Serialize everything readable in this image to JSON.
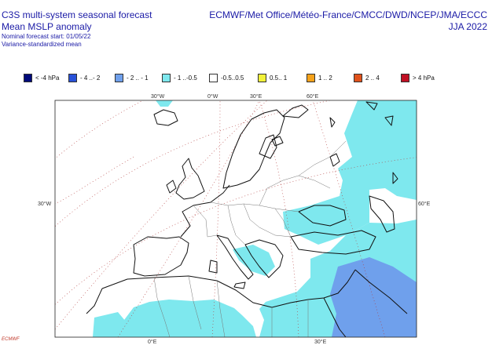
{
  "header": {
    "line1": "C3S multi-system seasonal forecast",
    "line2": "Mean MSLP anomaly",
    "line3": "Nominal forecast start: 01/05/22",
    "line4": "Variance-standardized mean",
    "centres": "ECMWF/Met Office/Météo-France/CMCC/DWD/NCEP/JMA/ECCC",
    "season": "JJA 2022"
  },
  "legend": [
    {
      "label": "< -4 hPa",
      "color": "#000a7a"
    },
    {
      "label": "- 4 ..- 2",
      "color": "#2851d8"
    },
    {
      "label": "- 2 .. - 1",
      "color": "#6fa0ec"
    },
    {
      "label": "- 1 ..-0.5",
      "color": "#7ee8ee"
    },
    {
      "label": "-0.5..0.5",
      "color": "#ffffff"
    },
    {
      "label": "0.5.. 1",
      "color": "#f2f23a"
    },
    {
      "label": "1 .. 2",
      "color": "#f5a21a"
    },
    {
      "label": "2 .. 4",
      "color": "#e0521c"
    },
    {
      "label": "> 4 hPa",
      "color": "#c01024"
    }
  ],
  "map": {
    "lon_labels_top": [
      "30°W",
      "0°W",
      "30°E",
      "60°E"
    ],
    "lon_labels_bottom": [
      "0°E",
      "30°E"
    ],
    "lat_label_left": "30°W",
    "lat_label_right": "60°E",
    "anomaly_colors": {
      "minus1": "#7ee8ee",
      "minus2": "#6fa0ec"
    }
  },
  "logo_text": "ECMWF"
}
